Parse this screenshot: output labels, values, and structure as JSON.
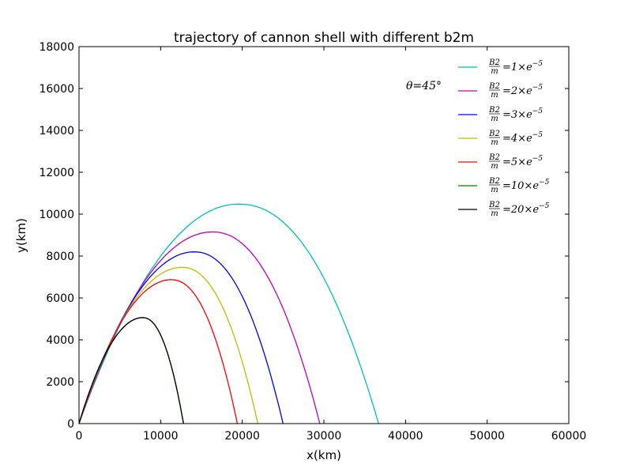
{
  "chart_data": {
    "type": "line",
    "title": "trajectory of cannon shell with different b2m",
    "xlabel": "x(km)",
    "ylabel": "y(km)",
    "xlim": [
      0,
      60000
    ],
    "ylim": [
      0,
      18000
    ],
    "xticks": [
      0,
      10000,
      20000,
      30000,
      40000,
      50000,
      60000
    ],
    "yticks": [
      0,
      2000,
      4000,
      6000,
      8000,
      10000,
      12000,
      14000,
      16000,
      18000
    ],
    "grid": false,
    "legend_position": "top-right",
    "annotation": "θ=45°",
    "series": [
      {
        "name": "B2/m = 1 × e^-5",
        "color": "#00bfbf",
        "x_peak": 19500,
        "y_peak": 10480,
        "x_end": 36700
      },
      {
        "name": "B2/m = 2 × e^-5",
        "color": "#bf00bf",
        "x_peak": 16300,
        "y_peak": 9150,
        "x_end": 29500
      },
      {
        "name": "B2/m = 3 × e^-5",
        "color": "#0000ff",
        "x_peak": 14100,
        "y_peak": 8200,
        "x_end": 25000
      },
      {
        "name": "B2/m = 4 × e^-5",
        "color": "#bfbf00",
        "x_peak": 12600,
        "y_peak": 7460,
        "x_end": 21900
      },
      {
        "name": "B2/m = 5 × e^-5",
        "color": "#ff0000",
        "x_peak": 11300,
        "y_peak": 6870,
        "x_end": 19400
      },
      {
        "name": "B2/m = 10 × e^-5",
        "color": "#008000",
        "x_peak": 7800,
        "y_peak": 5060,
        "x_end": 12800
      },
      {
        "name": "B2/m = 20 × e^-5",
        "color": "#000000",
        "x_peak": 7800,
        "y_peak": 5060,
        "x_end": 12800
      }
    ],
    "legend": [
      {
        "coef": "1"
      },
      {
        "coef": "2"
      },
      {
        "coef": "3"
      },
      {
        "coef": "4"
      },
      {
        "coef": "5"
      },
      {
        "coef": "10"
      },
      {
        "coef": "20"
      }
    ]
  }
}
